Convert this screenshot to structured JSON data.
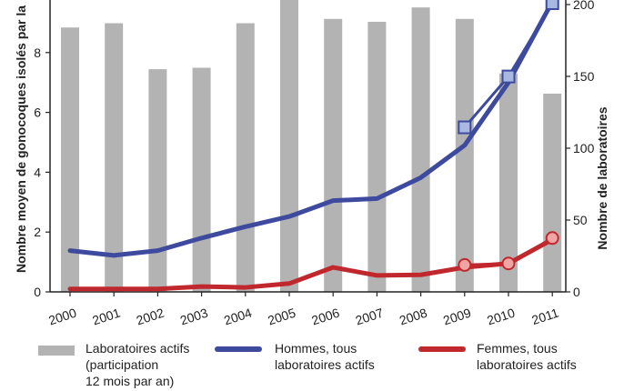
{
  "chart_data": {
    "type": "bar+line",
    "categories": [
      "2000",
      "2001",
      "2002",
      "2003",
      "2004",
      "2005",
      "2006",
      "2007",
      "2008",
      "2009",
      "2010",
      "2011"
    ],
    "bars": {
      "name": "Laboratoires actifs (participation 12 mois par an)",
      "axis": "right",
      "values": [
        184,
        187,
        155,
        156,
        187,
        208,
        190,
        188,
        198,
        190,
        152,
        138
      ],
      "color": "#b3b3b3"
    },
    "series": [
      {
        "name": "Hommes, tous laboratoires actifs",
        "axis": "left",
        "color": "#3d4a9e",
        "values": [
          1.38,
          1.22,
          1.38,
          1.8,
          2.18,
          2.52,
          3.05,
          3.12,
          3.82,
          4.9,
          7.0,
          9.7
        ]
      },
      {
        "name": "Femmes, tous laboratoires actifs",
        "axis": "left",
        "color": "#c0282d",
        "values": [
          0.1,
          0.1,
          0.1,
          0.18,
          0.15,
          0.28,
          0.82,
          0.55,
          0.57,
          0.82,
          0.95,
          1.75
        ]
      }
    ],
    "markers": [
      {
        "name": "Hommes, marqueurs",
        "shape": "square",
        "color": "#3d4a9e",
        "fill": "#a8b8e0",
        "points": [
          [
            9,
            5.5
          ],
          [
            10,
            7.2
          ],
          [
            11,
            9.65
          ]
        ]
      },
      {
        "name": "Femmes, marqueurs",
        "shape": "circle",
        "color": "#c0282d",
        "fill": "#f0a5a5",
        "points": [
          [
            9,
            0.9
          ],
          [
            10,
            0.95
          ],
          [
            11,
            1.8
          ]
        ]
      }
    ],
    "ylabel": "Nombre moyen de gonocoques isolés par la",
    "y2label": "Nombre de laboratoires",
    "ylim": [
      0,
      10
    ],
    "y2lim": [
      0,
      200
    ],
    "yticks": [
      0,
      2,
      4,
      6,
      8
    ],
    "y2ticks": [
      0,
      50,
      100,
      150,
      200
    ],
    "grid": false
  },
  "legend": {
    "bars_lines": [
      "Laboratoires actifs",
      "(participation",
      "12 mois par an)"
    ],
    "men_lines": [
      "Hommes, tous",
      "laboratoires actifs"
    ],
    "women_lines": [
      "Femmes, tous",
      "laboratoires actifs"
    ]
  }
}
